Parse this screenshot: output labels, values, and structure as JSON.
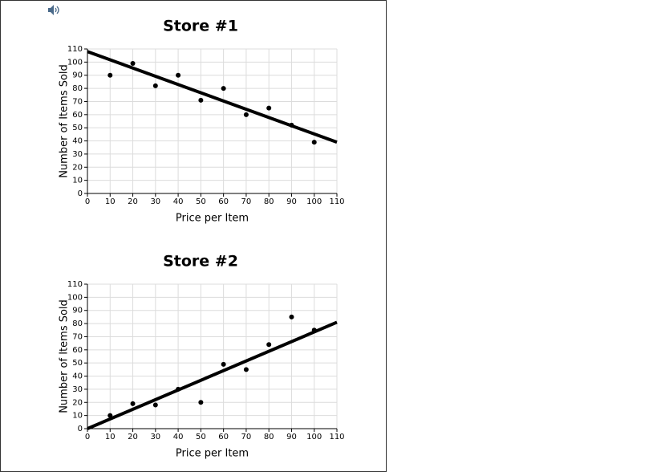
{
  "chart_data": [
    {
      "type": "scatter",
      "title": "Store #1",
      "x_label": "Price per Item",
      "y_label": "Number of Items Sold",
      "x": [
        10,
        20,
        30,
        40,
        50,
        60,
        70,
        80,
        90,
        100
      ],
      "values": [
        90,
        99,
        82,
        90,
        71,
        80,
        60,
        65,
        52,
        39
      ],
      "color": "#000000",
      "trend": {
        "x": [
          0,
          110
        ],
        "values": [
          108,
          39
        ]
      },
      "xlim": [
        0,
        110
      ],
      "ylim": [
        0,
        110
      ],
      "xticks": [
        0,
        10,
        20,
        30,
        40,
        50,
        60,
        70,
        80,
        90,
        100,
        110
      ],
      "yticks": [
        0,
        10,
        20,
        30,
        40,
        50,
        60,
        70,
        80,
        90,
        100,
        110
      ],
      "grid": true
    },
    {
      "type": "scatter",
      "title": "Store #2",
      "x_label": "Price per Item",
      "y_label": "Number of Items Sold",
      "x": [
        10,
        20,
        30,
        40,
        50,
        60,
        70,
        80,
        90,
        100
      ],
      "values": [
        10,
        19,
        18,
        30,
        20,
        49,
        45,
        64,
        85,
        75
      ],
      "color": "#000000",
      "trend": {
        "x": [
          0,
          110
        ],
        "values": [
          0,
          81
        ]
      },
      "xlim": [
        0,
        110
      ],
      "ylim": [
        0,
        110
      ],
      "xticks": [
        0,
        10,
        20,
        30,
        40,
        50,
        60,
        70,
        80,
        90,
        100,
        110
      ],
      "yticks": [
        0,
        10,
        20,
        30,
        40,
        50,
        60,
        70,
        80,
        90,
        100,
        110
      ],
      "grid": true
    }
  ]
}
